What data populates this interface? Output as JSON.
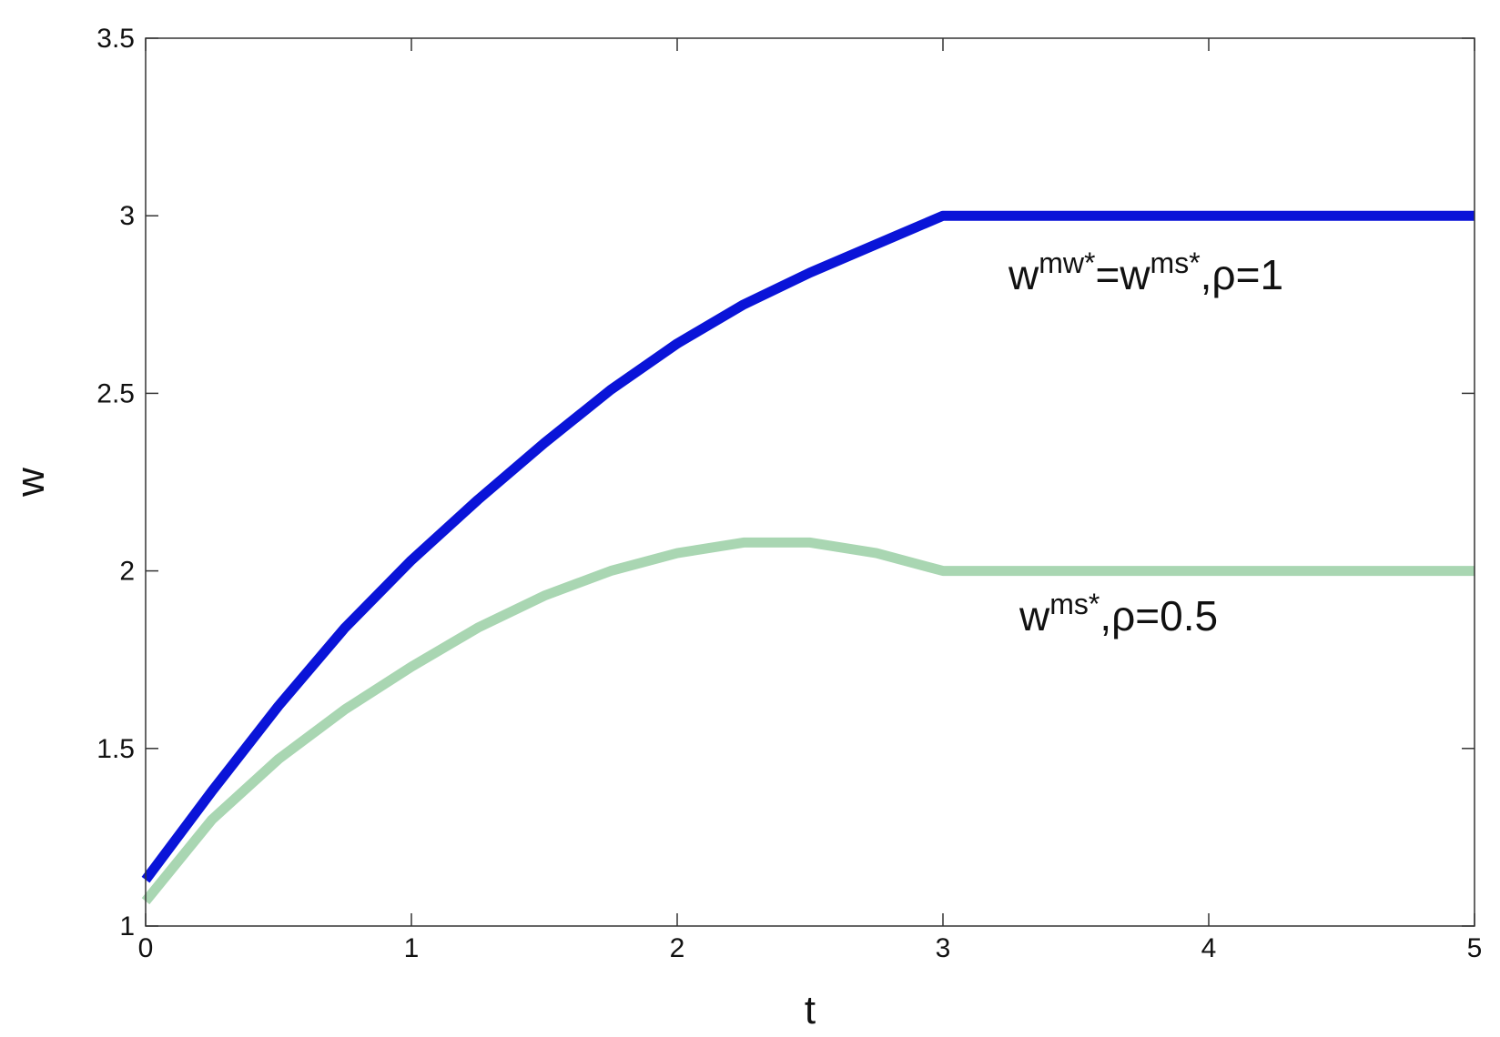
{
  "chart_data": {
    "type": "line",
    "xlabel": "t",
    "ylabel": "w",
    "xlim": [
      0,
      5
    ],
    "ylim": [
      1,
      3.5
    ],
    "xticks": [
      0,
      1,
      2,
      3,
      4,
      5
    ],
    "yticks": [
      1,
      1.5,
      2,
      2.5,
      3,
      3.5
    ],
    "x": [
      0,
      0.25,
      0.5,
      0.75,
      1,
      1.25,
      1.5,
      1.75,
      2,
      2.25,
      2.5,
      2.75,
      3,
      5
    ],
    "series": [
      {
        "color": "#0a14d8",
        "values": [
          1.13,
          1.38,
          1.62,
          1.84,
          2.03,
          2.2,
          2.36,
          2.51,
          2.64,
          2.75,
          2.84,
          2.92,
          3.0,
          3.0
        ]
      },
      {
        "color": "#a9d6b2",
        "values": [
          1.07,
          1.3,
          1.47,
          1.61,
          1.73,
          1.84,
          1.93,
          2.0,
          2.05,
          2.08,
          2.08,
          2.05,
          2.0,
          2.0
        ]
      }
    ],
    "annotations": [
      [
        "w",
        "mw*",
        "=w",
        "ms*",
        ",ρ=1"
      ],
      [
        "w",
        "ms*",
        ",ρ=0.5"
      ]
    ]
  }
}
